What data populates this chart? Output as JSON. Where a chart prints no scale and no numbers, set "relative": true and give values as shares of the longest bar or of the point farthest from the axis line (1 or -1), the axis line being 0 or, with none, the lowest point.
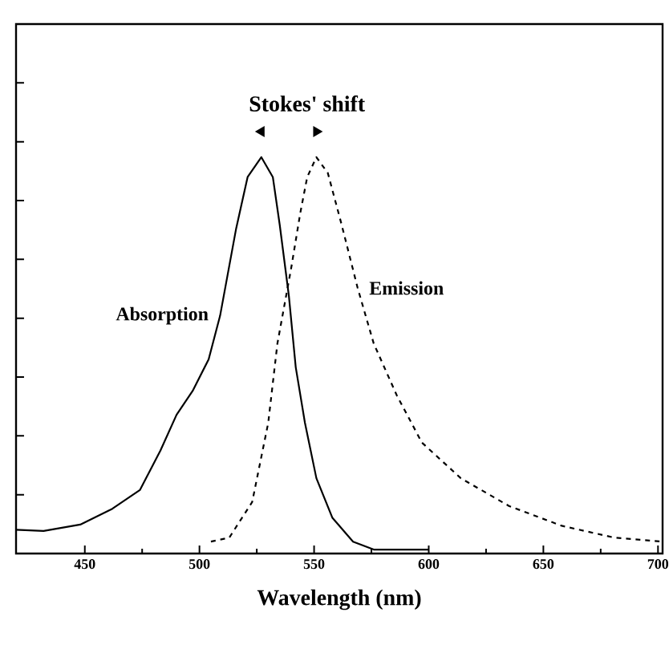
{
  "chart_data": {
    "type": "line",
    "relative": true,
    "xlabel": "Wavelength (nm)",
    "xlim": [
      420,
      702
    ],
    "xticks": [
      450,
      500,
      550,
      600,
      650,
      700
    ],
    "annotations": [
      "Stokes' shift"
    ],
    "grid": false,
    "marker": "none",
    "series": [
      {
        "name": "Absorption",
        "color": "#000000",
        "line_style": "solid",
        "x": [
          420,
          432,
          448,
          462,
          474,
          483,
          490,
          497,
          504,
          509,
          516,
          521,
          527,
          532,
          535,
          539,
          542,
          546,
          551,
          558,
          567,
          576,
          595,
          600
        ],
        "values": [
          0.06,
          0.057,
          0.073,
          0.113,
          0.16,
          0.26,
          0.35,
          0.41,
          0.49,
          0.6,
          0.82,
          0.95,
          1.0,
          0.95,
          0.83,
          0.65,
          0.47,
          0.33,
          0.19,
          0.09,
          0.03,
          0.01,
          0.01,
          0.01
        ]
      },
      {
        "name": "Emission",
        "color": "#000000",
        "line_style": "dashed",
        "x": [
          505,
          513,
          523,
          530,
          534,
          540,
          544,
          547,
          551,
          556,
          562,
          569,
          576,
          586,
          597,
          614,
          635,
          658,
          681,
          702
        ],
        "values": [
          0.03,
          0.04,
          0.13,
          0.33,
          0.53,
          0.72,
          0.86,
          0.95,
          1.0,
          0.96,
          0.83,
          0.67,
          0.53,
          0.4,
          0.28,
          0.19,
          0.12,
          0.07,
          0.04,
          0.03
        ]
      }
    ]
  }
}
